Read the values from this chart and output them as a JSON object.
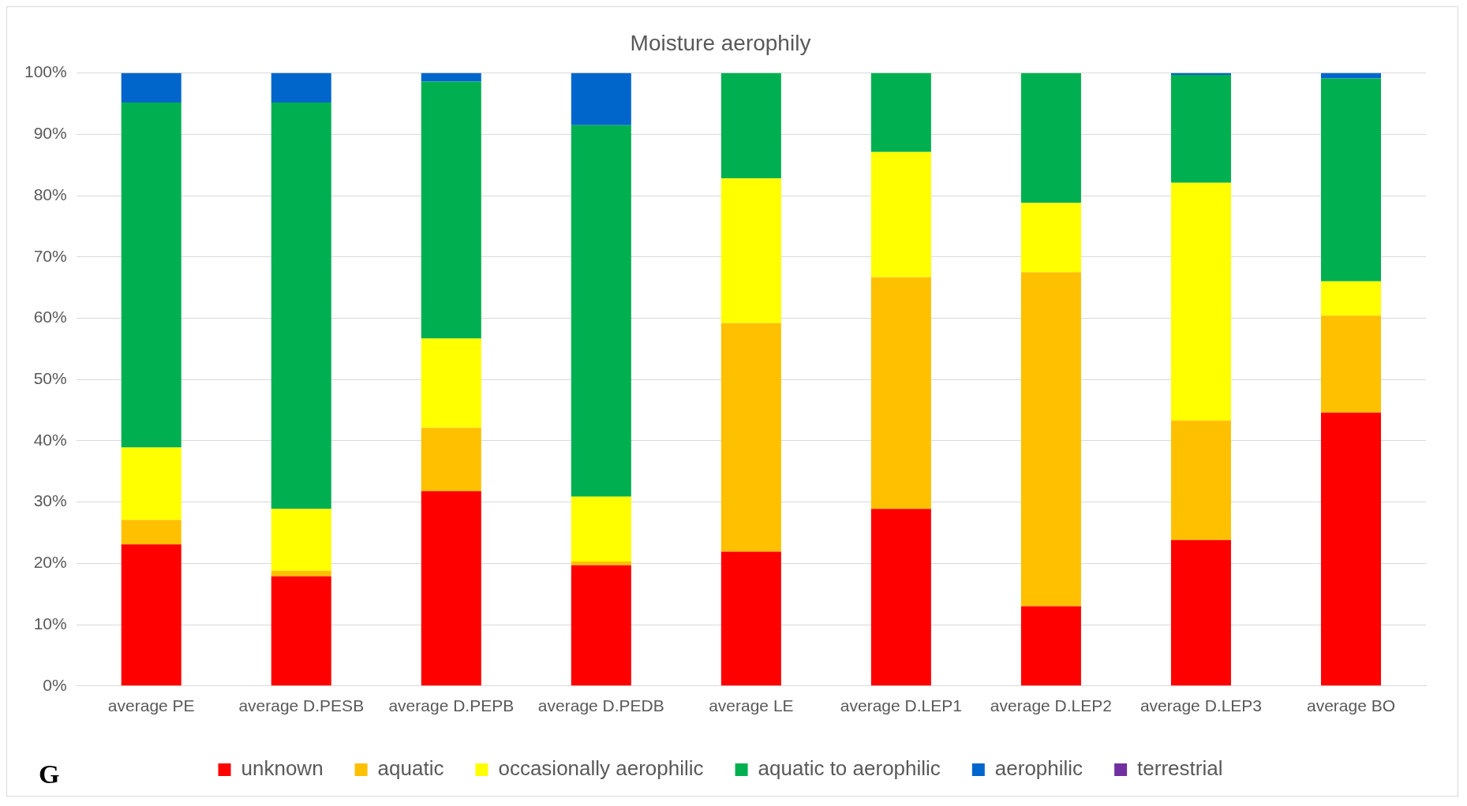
{
  "chart_data": {
    "type": "bar",
    "title": "Moisture aerophily",
    "stacked": true,
    "categories": [
      "average PE",
      "average D.PESB",
      "average D.PEPB",
      "average D.PEDB",
      "average LE",
      "average D.LEP1",
      "average D.LEP2",
      "average D.LEP3",
      "average BO"
    ],
    "series": [
      {
        "name": "unknown",
        "color": "#ff0000",
        "values": [
          23.1,
          17.9,
          31.8,
          19.7,
          21.9,
          28.9,
          13.0,
          23.8,
          44.6
        ]
      },
      {
        "name": "aquatic",
        "color": "#ffc000",
        "values": [
          4.0,
          0.9,
          10.3,
          0.6,
          37.3,
          37.8,
          54.5,
          19.5,
          15.8
        ]
      },
      {
        "name": "occasionally aerophilic",
        "color": "#ffff00",
        "values": [
          11.8,
          10.1,
          14.6,
          10.6,
          23.6,
          20.4,
          11.3,
          38.8,
          5.6
        ]
      },
      {
        "name": "aquatic to aerophilic",
        "color": "#00b050",
        "values": [
          56.3,
          66.3,
          41.9,
          60.6,
          17.2,
          12.9,
          21.2,
          17.6,
          33.1
        ]
      },
      {
        "name": "aerophilic",
        "color": "#0066cc",
        "values": [
          4.8,
          4.8,
          1.4,
          8.5,
          0,
          0,
          0,
          0.3,
          0.9
        ]
      },
      {
        "name": "terrestrial",
        "color": "#7030a0",
        "values": [
          0,
          0,
          0,
          0,
          0,
          0,
          0,
          0,
          0
        ]
      }
    ],
    "ylim": [
      0,
      100
    ],
    "yticks": [
      {
        "value": 0,
        "label": "0%"
      },
      {
        "value": 10,
        "label": "10%"
      },
      {
        "value": 20,
        "label": "20%"
      },
      {
        "value": 30,
        "label": "30%"
      },
      {
        "value": 40,
        "label": "40%"
      },
      {
        "value": 50,
        "label": "50%"
      },
      {
        "value": 60,
        "label": "60%"
      },
      {
        "value": 70,
        "label": "70%"
      },
      {
        "value": 80,
        "label": "80%"
      },
      {
        "value": 90,
        "label": "90%"
      },
      {
        "value": 100,
        "label": "100%"
      }
    ],
    "grid": "y",
    "legend": "bottom",
    "annotations": [
      "G"
    ]
  }
}
